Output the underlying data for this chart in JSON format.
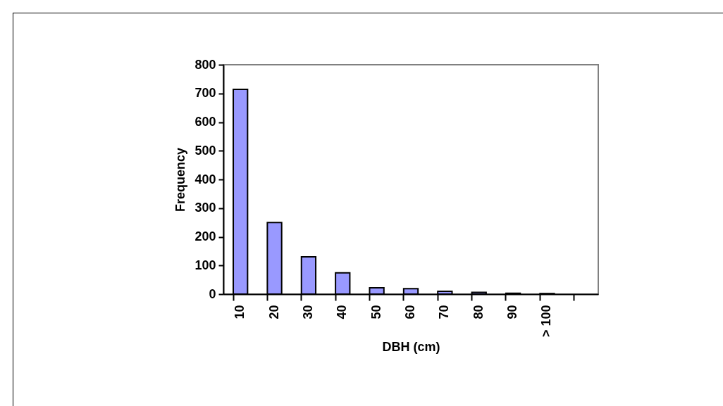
{
  "chart_data": {
    "type": "bar",
    "xlabel": "DBH (cm)",
    "ylabel": "Frequency",
    "categories": [
      "10",
      "20",
      "30",
      "40",
      "50",
      "60",
      "70",
      "80",
      "90",
      "> 100",
      null
    ],
    "values": [
      714,
      250,
      130,
      74,
      22,
      19,
      10,
      6,
      3,
      2,
      null
    ],
    "color": "#9999ff",
    "ylim": [
      0,
      800
    ],
    "yticks": [
      0,
      100,
      200,
      300,
      400,
      500,
      600,
      700,
      800
    ],
    "grid": false,
    "legend": false
  }
}
